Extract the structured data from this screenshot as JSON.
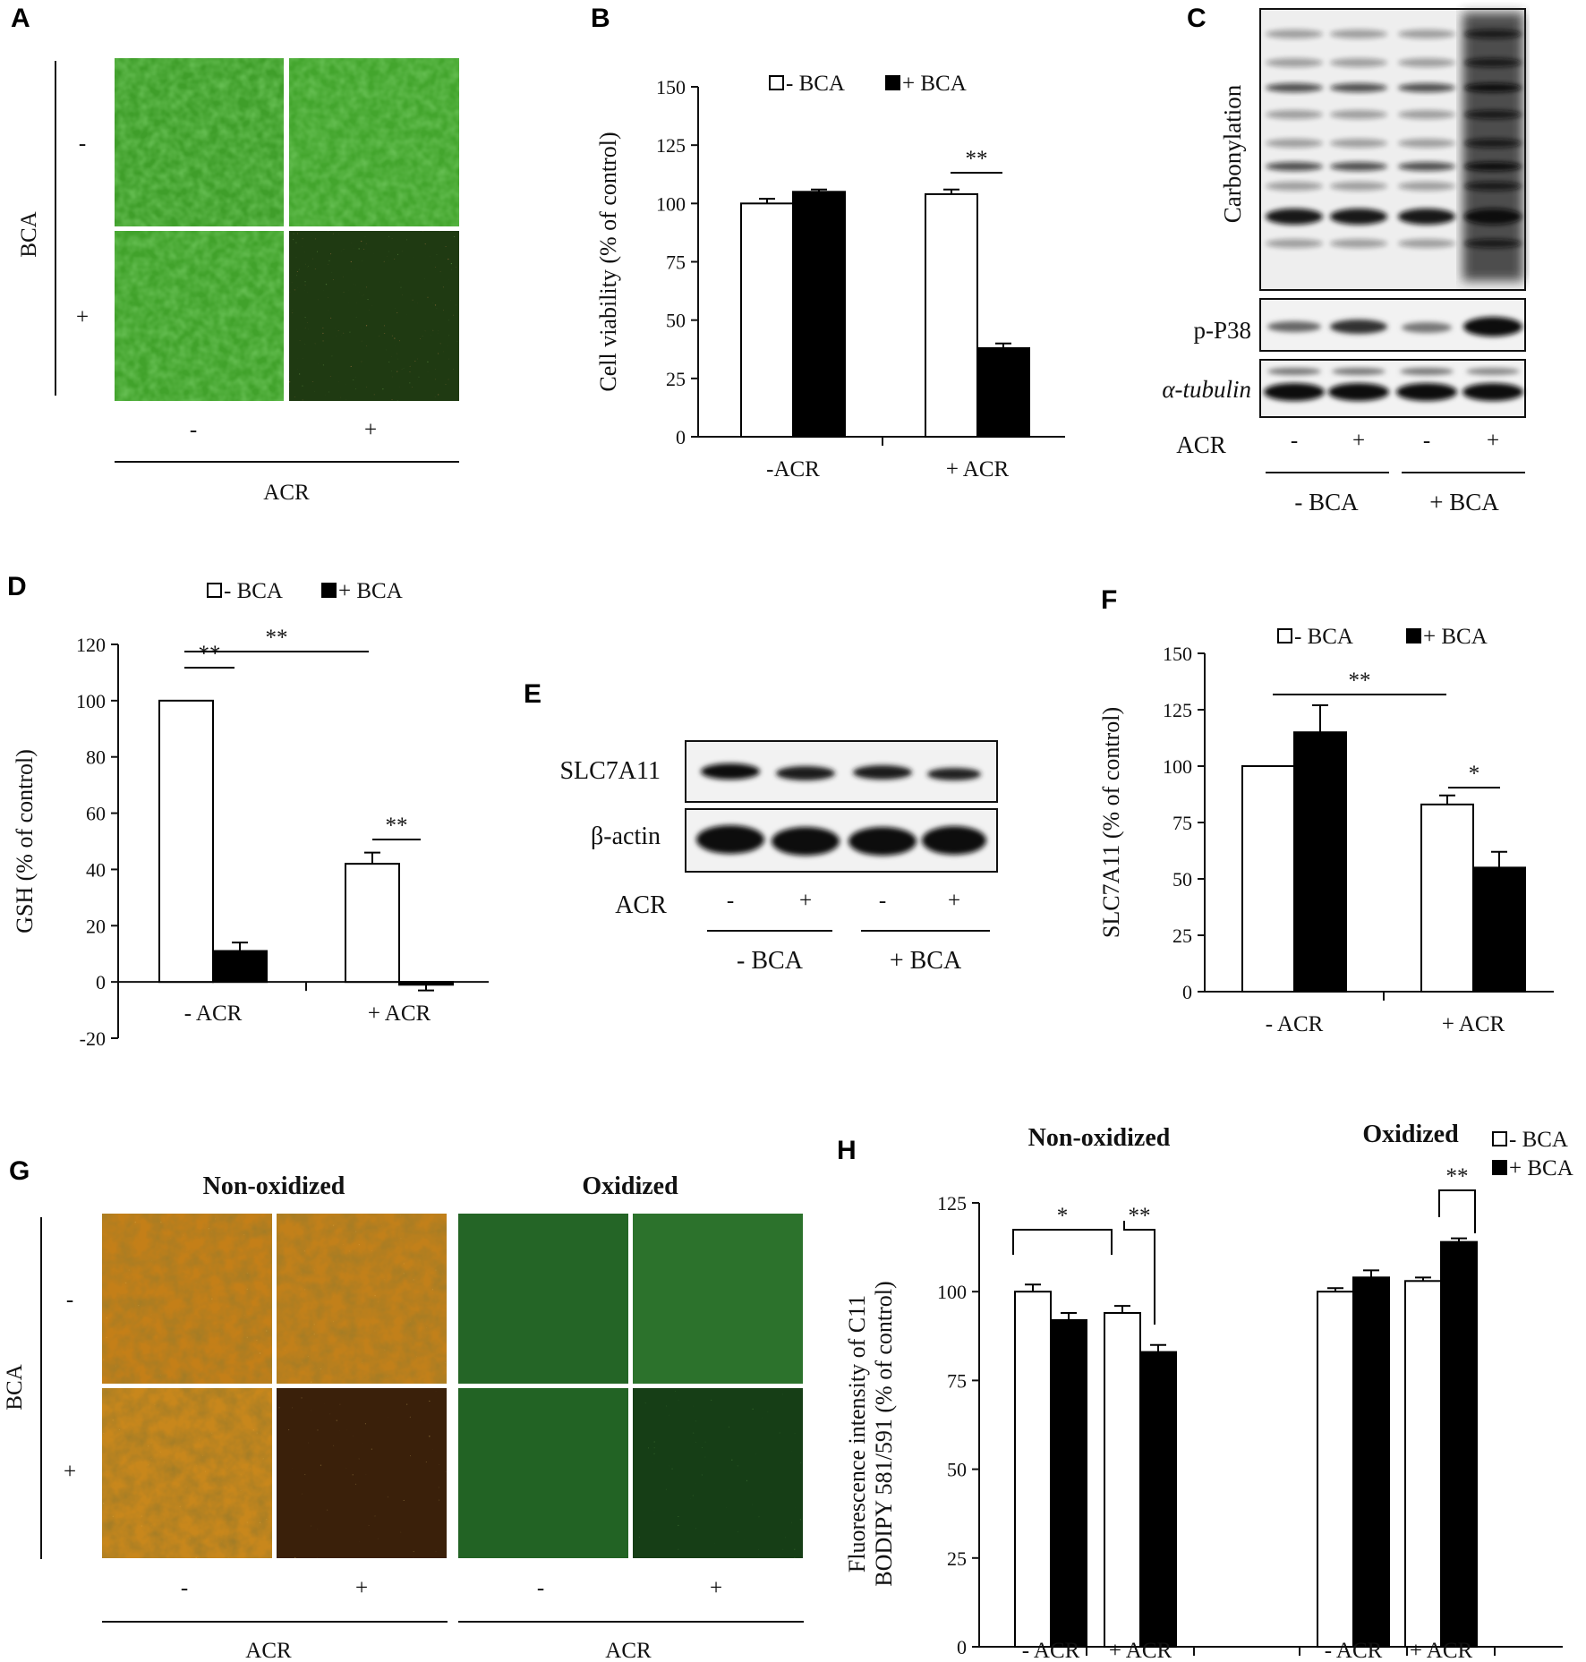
{
  "panel_letters": [
    "A",
    "B",
    "C",
    "D",
    "E",
    "F",
    "G",
    "H"
  ],
  "panelA": {
    "bca_label": "BCA",
    "row_labels": [
      "-",
      "+"
    ],
    "col_labels": [
      "-",
      "+"
    ],
    "acr_label": "ACR"
  },
  "legend": {
    "minus": "- BCA",
    "plus": "+ BCA"
  },
  "panelC": {
    "carbonylation_label": "Carbonylation",
    "pp38_label": "p-P38",
    "tubulin_label": "α-tubulin",
    "acr_label": "ACR",
    "acr_marks": [
      "-",
      "+",
      "-",
      "+"
    ],
    "groups": [
      "- BCA",
      "+ BCA"
    ]
  },
  "panelE": {
    "slc_label": "SLC7A11",
    "actin_label": "β-actin",
    "acr_label": "ACR",
    "acr_marks": [
      "-",
      "+",
      "-",
      "+"
    ],
    "groups": [
      "- BCA",
      "+ BCA"
    ]
  },
  "panelG": {
    "headers": [
      "Non-oxidized",
      "Oxidized"
    ],
    "bca_label": "BCA",
    "row_labels": [
      "-",
      "+"
    ],
    "col_labels": [
      "-",
      "+",
      "-",
      "+"
    ],
    "acr_labels": [
      "ACR",
      "ACR"
    ]
  },
  "panelH": {
    "headers": [
      "Non-oxidized",
      "Oxidized"
    ]
  },
  "colors": {
    "minus_bca": "#ffffff",
    "plus_bca": "#000000",
    "live_green": "#3fae2c",
    "dead_red": "#d63a2a",
    "orange": "#c88a1e"
  },
  "chart_data": [
    {
      "id": "B",
      "type": "bar",
      "ylabel": "Cell viability (% of control)",
      "categories": [
        "-ACR",
        "+ ACR"
      ],
      "ylim": [
        0,
        150
      ],
      "yticks": [
        0,
        25,
        50,
        75,
        100,
        125,
        150
      ],
      "series": [
        {
          "name": "- BCA",
          "values": [
            100,
            104
          ],
          "errors": [
            2,
            2
          ]
        },
        {
          "name": "+ BCA",
          "values": [
            105,
            38
          ],
          "errors": [
            1,
            2
          ]
        }
      ],
      "significance": [
        {
          "label": "**"
        }
      ]
    },
    {
      "id": "D",
      "type": "bar",
      "ylabel": "GSH  (% of control)",
      "categories": [
        "- ACR",
        "+ ACR"
      ],
      "ylim": [
        -20,
        120
      ],
      "yticks": [
        -20,
        0,
        20,
        40,
        60,
        80,
        100,
        120
      ],
      "series": [
        {
          "name": "- BCA",
          "values": [
            100,
            42
          ],
          "errors": [
            0,
            4
          ]
        },
        {
          "name": "+ BCA",
          "values": [
            11,
            -1
          ],
          "errors": [
            3,
            2
          ]
        }
      ],
      "significance": [
        {
          "label": "**"
        },
        {
          "label": "**"
        },
        {
          "label": "**"
        }
      ]
    },
    {
      "id": "F",
      "type": "bar",
      "ylabel": "SLC7A11 (% of control)",
      "categories": [
        "- ACR",
        "+ ACR"
      ],
      "ylim": [
        0,
        150
      ],
      "yticks": [
        0,
        25,
        50,
        75,
        100,
        125,
        150
      ],
      "series": [
        {
          "name": "- BCA",
          "values": [
            100,
            83
          ],
          "errors": [
            0,
            4
          ]
        },
        {
          "name": "+ BCA",
          "values": [
            115,
            55
          ],
          "errors": [
            12,
            7
          ]
        }
      ],
      "significance": [
        {
          "label": "**"
        },
        {
          "label": "*"
        }
      ]
    },
    {
      "id": "H",
      "type": "bar",
      "ylabel_lines": [
        "Fluorescence intensity of C11",
        "BODIPY 581/591 (% of control)"
      ],
      "categories": [
        "- ACR",
        "+ ACR",
        "- ACR",
        "+ ACR"
      ],
      "groups": [
        "Non-oxidized",
        "Oxidized"
      ],
      "ylim": [
        0,
        125
      ],
      "yticks": [
        0,
        25,
        50,
        75,
        100,
        125
      ],
      "series": [
        {
          "name": "- BCA",
          "values": [
            100,
            94,
            100,
            103
          ],
          "errors": [
            2,
            2,
            1,
            1
          ]
        },
        {
          "name": "+ BCA",
          "values": [
            92,
            83,
            104,
            114
          ],
          "errors": [
            2,
            2,
            2,
            1
          ]
        }
      ],
      "significance": [
        {
          "label": "*"
        },
        {
          "label": "**"
        },
        {
          "label": "**"
        }
      ]
    }
  ]
}
